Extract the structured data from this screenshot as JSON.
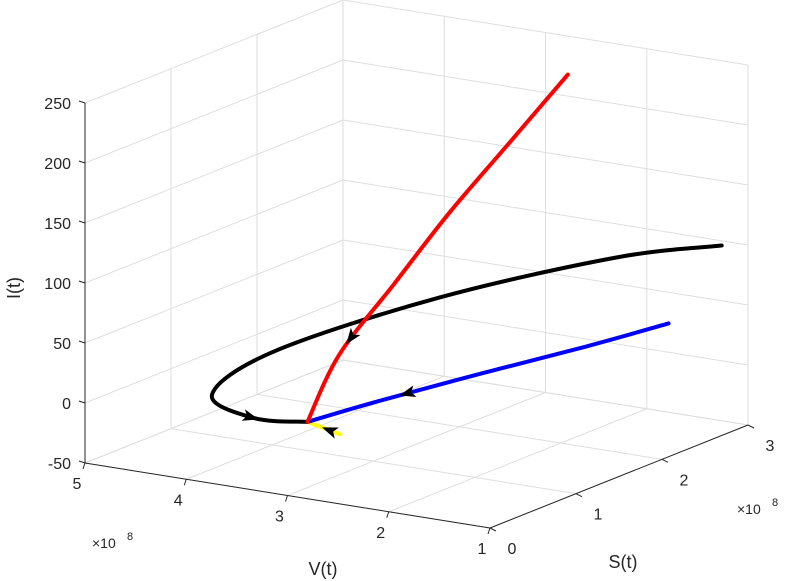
{
  "chart_data": {
    "type": "line3d",
    "title": "",
    "xlabel": "V(t)",
    "ylabel": "S(t)",
    "zlabel": "I(t)",
    "x_multiplier": "×10",
    "x_multiplier_exp": "8",
    "y_multiplier": "×10",
    "y_multiplier_exp": "8",
    "x_ticks": [
      "5",
      "4",
      "3",
      "2",
      "1"
    ],
    "y_ticks": [
      "0",
      "1",
      "2",
      "3"
    ],
    "z_ticks": [
      "250",
      "200",
      "150",
      "100",
      "50",
      "0",
      "-50"
    ],
    "xlim": [
      1,
      5
    ],
    "ylim": [
      0,
      3
    ],
    "zlim": [
      -50,
      250
    ],
    "grid": true,
    "series": [
      {
        "color": "#ff0000",
        "points": [
          [
            3.1,
            0.35,
            0
          ],
          [
            3.0,
            0.6,
            50
          ],
          [
            2.8,
            1.0,
            100
          ],
          [
            2.6,
            1.4,
            150
          ],
          [
            2.35,
            1.8,
            200
          ],
          [
            2.1,
            2.2,
            250
          ]
        ]
      },
      {
        "color": "#0000ff",
        "points": [
          [
            3.1,
            0.35,
            0
          ],
          [
            2.8,
            0.8,
            8
          ],
          [
            2.4,
            1.5,
            16
          ],
          [
            2.0,
            2.3,
            22
          ],
          [
            1.7,
            2.9,
            28
          ]
        ]
      },
      {
        "color": "#000000",
        "points": [
          [
            3.1,
            0.35,
            0
          ],
          [
            3.5,
            0.2,
            2
          ],
          [
            4.0,
            0.3,
            12
          ],
          [
            3.9,
            0.9,
            32
          ],
          [
            3.2,
            2.0,
            55
          ],
          [
            2.3,
            3.0,
            72
          ],
          [
            1.6,
            3.4,
            80
          ]
        ]
      },
      {
        "color": "#ffff00",
        "points": [
          [
            3.1,
            0.35,
            0
          ],
          [
            2.65,
            0.2,
            0
          ]
        ]
      }
    ]
  }
}
